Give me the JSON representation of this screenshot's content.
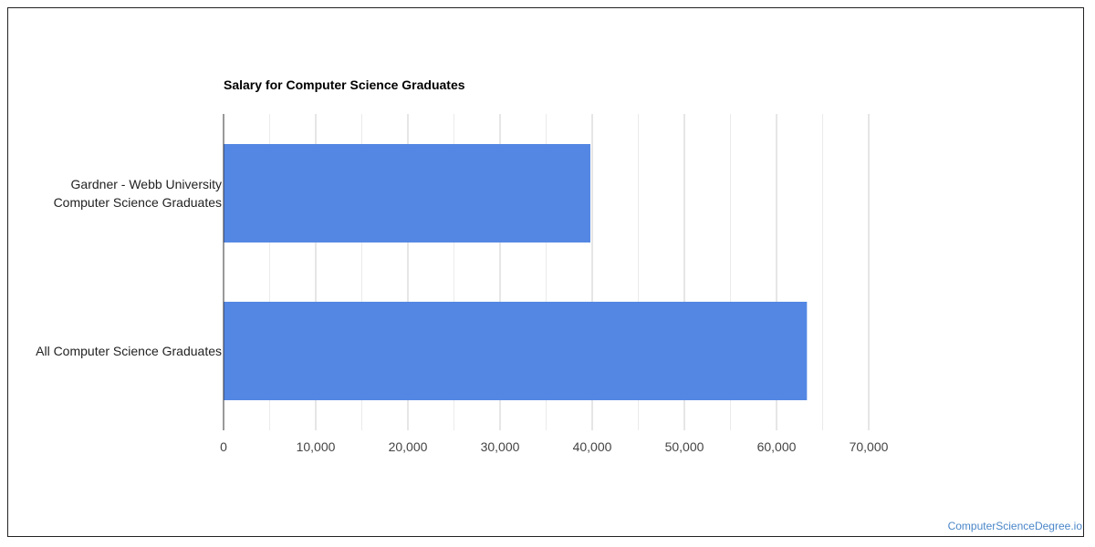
{
  "chart_data": {
    "type": "bar",
    "orientation": "horizontal",
    "title": "Salary for Computer Science Graduates",
    "categories": [
      [
        "Gardner - Webb University",
        "Computer Science Graduates"
      ],
      [
        "All Computer Science Graduates"
      ]
    ],
    "values": [
      39800,
      63300
    ],
    "xlim": [
      0,
      70000
    ],
    "xticks": [
      "0",
      "10,000",
      "20,000",
      "30,000",
      "40,000",
      "50,000",
      "60,000",
      "70,000"
    ],
    "bar_color": "#5487e3",
    "grid": true,
    "legend": "none"
  },
  "watermark": "ComputerScienceDegree.io"
}
